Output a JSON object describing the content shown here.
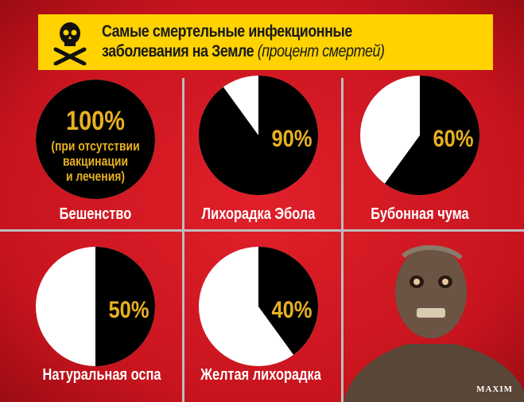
{
  "header": {
    "title_line1": "Самые смертельные инфекционные",
    "title_line2": "заболевания на Земле",
    "title_note": "(процент смертей)",
    "icon": "skull-crossbones-icon"
  },
  "colors": {
    "background": "#d01a22",
    "banner": "#ffd200",
    "slice": "#000000",
    "rest": "#ffffff",
    "value_text": "#e8b122"
  },
  "chart_data": {
    "type": "pie",
    "title": "Самые смертельные инфекционные заболевания на Земле (процент смертей)",
    "categories": [
      "Бешенство",
      "Лихорадка Эбола",
      "Бубонная чума",
      "Натуральная оспа",
      "Желтая лихорадка"
    ],
    "values": [
      100,
      90,
      60,
      50,
      40
    ],
    "value_labels": [
      "100%",
      "90%",
      "60%",
      "50%",
      "40%"
    ],
    "notes": [
      "(при отсутствии",
      "вакцинации",
      "и лечения)"
    ]
  },
  "brand": "MAXIM"
}
